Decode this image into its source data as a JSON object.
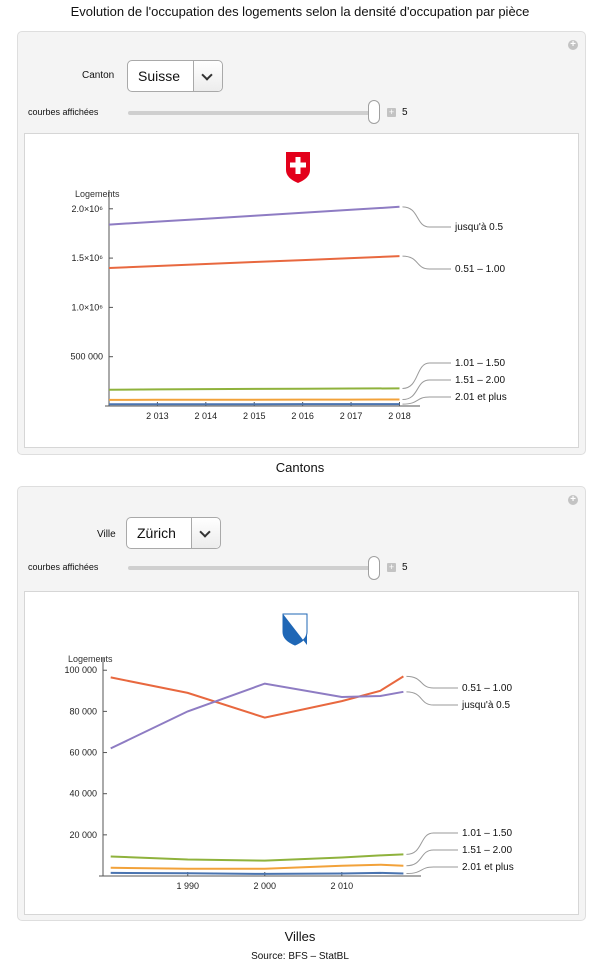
{
  "page": {
    "title": "Evolution de l'occupation des logements selon la densité d'occupation par pièce",
    "source": "Source: BFS – StatBL"
  },
  "colors": {
    "purple": "#8e7cc3",
    "red": "#e8683f",
    "green": "#8fb23c",
    "orange": "#f2a23a",
    "blue": "#4a74b0",
    "swiss_red": "#e3001b",
    "zurich_blue": "#1f67b6"
  },
  "panels": [
    {
      "selector_label": "Canton",
      "selector_value": "Suisse",
      "slider_label": "courbes affichées",
      "slider_value": "5",
      "caption": "Cantons",
      "emblem": "swiss-cross-icon"
    },
    {
      "selector_label": "Ville",
      "selector_value": "Zürich",
      "slider_label": "courbes affichées",
      "slider_value": "5",
      "caption": "Villes",
      "emblem": "zurich-coat-of-arms-icon"
    }
  ],
  "chart_data": [
    {
      "type": "line",
      "ylabel": "Logements",
      "xlim": [
        2012.0,
        2018.3
      ],
      "ylim": [
        0,
        2150000
      ],
      "x_ticks": [
        2013,
        2014,
        2015,
        2016,
        2017,
        2018
      ],
      "x_tick_labels": [
        "2 013",
        "2 014",
        "2 015",
        "2 016",
        "2 017",
        "2 018"
      ],
      "y_ticks": [
        500000,
        1000000,
        1500000,
        2000000
      ],
      "y_tick_labels": [
        "500 000",
        "1.0×10⁶",
        "1.5×10⁶",
        "2.0×10⁶"
      ],
      "series": [
        {
          "name": "jusqu'à 0.5",
          "color": "#8e7cc3",
          "x": [
            2012,
            2013,
            2014,
            2015,
            2016,
            2017,
            2018
          ],
          "y": [
            1840000,
            1870000,
            1900000,
            1930000,
            1960000,
            1990000,
            2020000
          ]
        },
        {
          "name": "0.51 – 1.00",
          "color": "#e8683f",
          "x": [
            2012,
            2013,
            2014,
            2015,
            2016,
            2017,
            2018
          ],
          "y": [
            1400000,
            1420000,
            1440000,
            1460000,
            1480000,
            1500000,
            1520000
          ]
        },
        {
          "name": "1.01 – 1.50",
          "color": "#8fb23c",
          "x": [
            2012,
            2013,
            2014,
            2015,
            2016,
            2017,
            2018
          ],
          "y": [
            165000,
            168000,
            171000,
            173000,
            175000,
            177000,
            178000
          ]
        },
        {
          "name": "1.51 – 2.00",
          "color": "#f2a23a",
          "x": [
            2012,
            2013,
            2014,
            2015,
            2016,
            2017,
            2018
          ],
          "y": [
            62000,
            63000,
            63500,
            64000,
            64500,
            65000,
            65500
          ]
        },
        {
          "name": "2.01 et plus",
          "color": "#4a74b0",
          "x": [
            2012,
            2013,
            2014,
            2015,
            2016,
            2017,
            2018
          ],
          "y": [
            18000,
            18000,
            18500,
            18500,
            19000,
            19000,
            19000
          ]
        }
      ]
    },
    {
      "type": "line",
      "ylabel": "Logements",
      "xlim": [
        1979,
        2019.5
      ],
      "ylim": [
        0,
        104000
      ],
      "x_ticks": [
        1990,
        2000,
        2010
      ],
      "x_tick_labels": [
        "1 990",
        "2 000",
        "2 010"
      ],
      "y_ticks": [
        20000,
        40000,
        60000,
        80000,
        100000
      ],
      "y_tick_labels": [
        "20 000",
        "40 000",
        "60 000",
        "80 000",
        "100 000"
      ],
      "series": [
        {
          "name": "0.51 – 1.00",
          "color": "#e8683f",
          "x": [
            1980,
            1990,
            2000,
            2010,
            2015,
            2018
          ],
          "y": [
            96500,
            89000,
            77000,
            85000,
            90000,
            97000
          ]
        },
        {
          "name": "jusqu'à 0.5",
          "color": "#8e7cc3",
          "x": [
            1980,
            1990,
            2000,
            2010,
            2015,
            2018
          ],
          "y": [
            62000,
            80000,
            93500,
            87000,
            87500,
            89500
          ]
        },
        {
          "name": "1.01 – 1.50",
          "color": "#8fb23c",
          "x": [
            1980,
            1990,
            2000,
            2010,
            2015,
            2018
          ],
          "y": [
            9500,
            8000,
            7500,
            9000,
            10000,
            10500
          ]
        },
        {
          "name": "1.51 – 2.00",
          "color": "#f2a23a",
          "x": [
            1980,
            1990,
            2000,
            2010,
            2015,
            2018
          ],
          "y": [
            4000,
            3500,
            3500,
            5000,
            5500,
            5000
          ]
        },
        {
          "name": "2.01 et plus",
          "color": "#4a74b0",
          "x": [
            1980,
            1990,
            2000,
            2010,
            2015,
            2018
          ],
          "y": [
            1500,
            1300,
            1000,
            1200,
            1500,
            1200
          ]
        }
      ]
    }
  ]
}
